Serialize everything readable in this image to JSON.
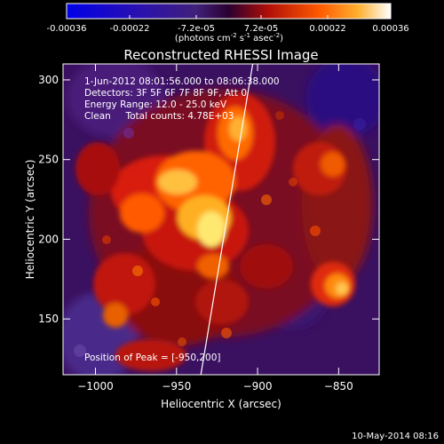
{
  "colorbar": {
    "tick_labels": [
      "-0.00036",
      "-0.00022",
      "-7.2e-05",
      "7.2e-05",
      "0.00022",
      "0.00036"
    ],
    "tick_values": [
      -0.00036,
      -0.00022,
      -7.2e-05,
      7.2e-05,
      0.00022,
      0.00036
    ],
    "range": [
      -0.00036,
      0.00036
    ],
    "units_main": "(photons cm",
    "units_sup1": "-2",
    "units_mid": " s",
    "units_sup2": "-1",
    "units_tail": " asec",
    "units_sup3": "-2",
    "units_close": ")"
  },
  "chart_data": {
    "type": "heatmap",
    "title": "Reconstructed RHESSI Image",
    "xlabel": "Heliocentric X (arcsec)",
    "ylabel": "Heliocentric Y (arcsec)",
    "xlim": [
      -1020,
      -825
    ],
    "ylim": [
      115,
      310
    ],
    "x_ticks": [
      -1000,
      -950,
      -900,
      -850
    ],
    "x_tick_labels": [
      "−1000",
      "−950",
      "−900",
      "−850"
    ],
    "y_ticks": [
      150,
      200,
      250,
      300
    ],
    "y_tick_labels": [
      "150",
      "200",
      "250",
      "300"
    ],
    "limb_line": {
      "x": [
        -935,
        -903
      ],
      "y": [
        115,
        310
      ]
    },
    "peak_position": [
      -950,
      200
    ],
    "annotations": [
      "1-Jun-2012 08:01:56.000 to 08:06:38.000",
      "Detectors: 3F 5F 6F 7F 8F 9F, Att 0",
      "Energy Range: 12.0 - 25.0 keV",
      "Clean     Total counts: 4.78E+03",
      "Position of Peak = [-950,200]"
    ],
    "colors": {
      "low": "#0000ff",
      "mid_dark": "#28004a",
      "mid_purple": "#5a2a8a",
      "red": "#c8140a",
      "orange": "#ff7a00",
      "yellow": "#ffe860",
      "high": "#ffffff"
    }
  },
  "footer": {
    "timestamp": "10-May-2014 08:16"
  }
}
